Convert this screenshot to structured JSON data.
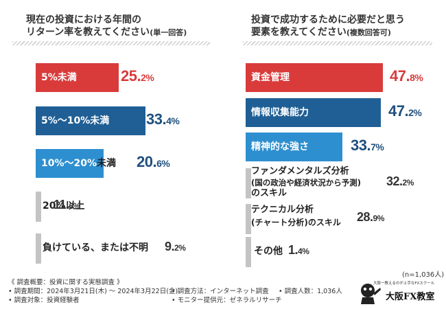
{
  "left_panel": {
    "title_line1": "現在の投資における年間の",
    "title_line2": "リターン率を教えてください",
    "title_paren": "(単一回答)"
  },
  "right_panel": {
    "title_line1": "投資で成功するために必要だと思う",
    "title_line2": "要素を教えてください",
    "title_paren": "(複数回答可)"
  },
  "chart_data": [
    {
      "type": "bar",
      "orientation": "horizontal",
      "title": "現在の投資における年間のリターン率を教えてください(単一回答)",
      "unit": "%",
      "categories": [
        "5%未満",
        "5%〜10%未満",
        "10%〜20%未満",
        "20%以上",
        "負けている、または不明"
      ],
      "values": [
        25.2,
        33.4,
        20.6,
        11.6,
        9.2
      ],
      "value_labels": [
        [
          "25.",
          "2%"
        ],
        [
          "33.",
          "4%"
        ],
        [
          "20.",
          "6%"
        ],
        [
          "11.",
          "6%"
        ],
        [
          "9.",
          "2%"
        ]
      ],
      "colors": [
        "#d93b3b",
        "#1f5f95",
        "#2e8fd0",
        "#c4c4c4",
        "#c4c4c4"
      ]
    },
    {
      "type": "bar",
      "orientation": "horizontal",
      "title": "投資で成功するために必要だと思う要素を教えてください(複数回答可)",
      "unit": "%",
      "categories": [
        "資金管理",
        "情報収集能力",
        "精神的な強さ",
        "ファンダメンタルズ分析(国の政治や経済状況から予測)のスキル",
        "テクニカル分析(チャート分析)のスキル",
        "その他"
      ],
      "values": [
        47.8,
        47.2,
        33.7,
        32.2,
        28.9,
        1.4
      ],
      "value_labels": [
        [
          "47.",
          "8%"
        ],
        [
          "47.",
          "2%"
        ],
        [
          "33.",
          "7%"
        ],
        [
          "32.",
          "2%"
        ],
        [
          "28.",
          "9%"
        ],
        [
          "1.",
          "4%"
        ]
      ],
      "colors": [
        "#d93b3b",
        "#1f5f95",
        "#2e8fd0",
        "#c4c4c4",
        "#c4c4c4",
        "#c4c4c4"
      ]
    }
  ],
  "right_labels": {
    "fundamental_line1": "ファンダメンタルズ分析",
    "fundamental_line2": "(国の政治や経済状況から予測)",
    "fundamental_line3": "のスキル",
    "technical_line1": "テクニカル分析",
    "technical_line2": "(チャート分析)のスキル"
  },
  "n_label": "(n=1,036人)",
  "footer": {
    "line1": "《 調査概要：投資に関する実態調査 》",
    "period": "• 調査期間：2024年3月21日(木) ～ 2024年3月22日(金)",
    "target": "• 調査対象：投資経験者",
    "method": "• 調査方法：インターネット調査",
    "monitor": "• モニター提供元：ゼネラルリサーチ",
    "count": "• 調査人数：1,036人"
  },
  "logo": {
    "tagline": "大阪一教えるのが上手なFXスクール",
    "name": "大阪FX教室"
  }
}
